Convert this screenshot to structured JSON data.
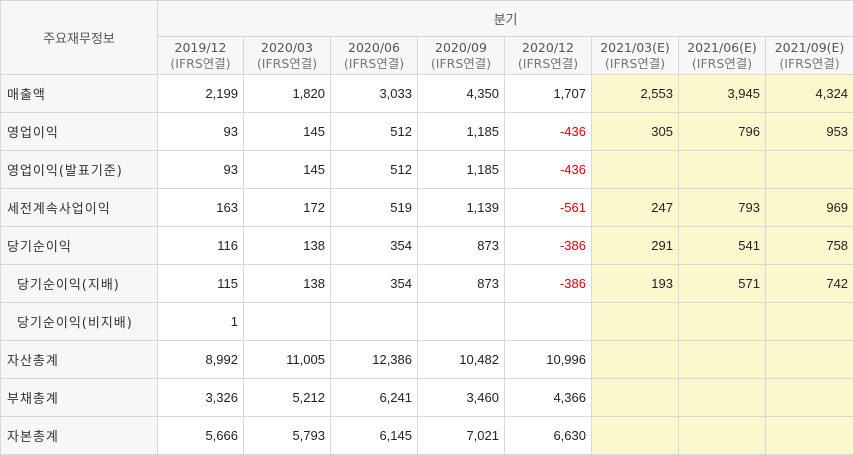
{
  "table": {
    "corner_label": "주요재무정보",
    "group_label": "분기",
    "periods": [
      {
        "period": "2019/12",
        "basis": "(IFRS연결)"
      },
      {
        "period": "2020/03",
        "basis": "(IFRS연결)"
      },
      {
        "period": "2020/06",
        "basis": "(IFRS연결)"
      },
      {
        "period": "2020/09",
        "basis": "(IFRS연결)"
      },
      {
        "period": "2020/12",
        "basis": "(IFRS연결)"
      },
      {
        "period": "2021/03(E)",
        "basis": "(IFRS연결)"
      },
      {
        "period": "2021/06(E)",
        "basis": "(IFRS연결)"
      },
      {
        "period": "2021/09(E)",
        "basis": "(IFRS연결)"
      }
    ],
    "rows": [
      {
        "label": "매출액",
        "values": [
          "2,199",
          "1,820",
          "3,033",
          "4,350",
          "1,707",
          "2,553",
          "3,945",
          "4,324"
        ]
      },
      {
        "label": "영업이익",
        "values": [
          "93",
          "145",
          "512",
          "1,185",
          "-436",
          "305",
          "796",
          "953"
        ]
      },
      {
        "label": "영업이익(발표기준)",
        "values": [
          "93",
          "145",
          "512",
          "1,185",
          "-436",
          "",
          "",
          ""
        ]
      },
      {
        "label": "세전계속사업이익",
        "values": [
          "163",
          "172",
          "519",
          "1,139",
          "-561",
          "247",
          "793",
          "969"
        ]
      },
      {
        "label": "당기순이익",
        "values": [
          "116",
          "138",
          "354",
          "873",
          "-386",
          "291",
          "541",
          "758"
        ]
      },
      {
        "label": "당기순이익(지배)",
        "values": [
          "115",
          "138",
          "354",
          "873",
          "-386",
          "193",
          "571",
          "742"
        ]
      },
      {
        "label": "당기순이익(비지배)",
        "values": [
          "1",
          "",
          "",
          "",
          "",
          "",
          "",
          ""
        ]
      },
      {
        "label": "자산총계",
        "values": [
          "8,992",
          "11,005",
          "12,386",
          "10,482",
          "10,996",
          "",
          "",
          ""
        ]
      },
      {
        "label": "부채총계",
        "values": [
          "3,326",
          "5,212",
          "6,241",
          "3,460",
          "4,366",
          "",
          "",
          ""
        ]
      },
      {
        "label": "자본총계",
        "values": [
          "5,666",
          "5,793",
          "6,145",
          "7,021",
          "6,630",
          "",
          "",
          ""
        ]
      }
    ],
    "colors": {
      "estimate_bg": "#fcf7cc",
      "negative": "#e0000b",
      "header_bg": "#f7f7f7",
      "border": "#d8d8d8"
    }
  }
}
